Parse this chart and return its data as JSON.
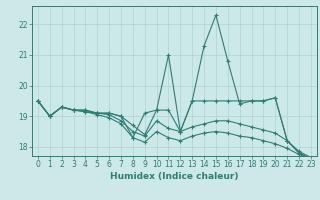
{
  "xlabel": "Humidex (Indice chaleur)",
  "xlim": [
    -0.5,
    23.5
  ],
  "ylim": [
    17.7,
    22.6
  ],
  "yticks": [
    18,
    19,
    20,
    21,
    22
  ],
  "xticks": [
    0,
    1,
    2,
    3,
    4,
    5,
    6,
    7,
    8,
    9,
    10,
    11,
    12,
    13,
    14,
    15,
    16,
    17,
    18,
    19,
    20,
    21,
    22,
    23
  ],
  "bg_color": "#cce9e7",
  "line_color": "#2e7d74",
  "grid_color": "#aed4d0",
  "line1_x": [
    0,
    1,
    2,
    3,
    4,
    5,
    6,
    7,
    8,
    9,
    10,
    11,
    12,
    13,
    14,
    15,
    16,
    17,
    18,
    19,
    20,
    21,
    22,
    23
  ],
  "line1_y": [
    19.5,
    19.0,
    19.3,
    19.2,
    19.2,
    19.1,
    19.1,
    19.0,
    18.3,
    19.1,
    19.2,
    21.0,
    18.5,
    19.5,
    21.3,
    22.3,
    20.8,
    19.4,
    19.5,
    19.5,
    19.6,
    18.2,
    17.8,
    17.6
  ],
  "line2_x": [
    0,
    1,
    2,
    3,
    4,
    5,
    6,
    7,
    8,
    9,
    10,
    11,
    12,
    13,
    14,
    15,
    16,
    17,
    18,
    19,
    20,
    21,
    22,
    23
  ],
  "line2_y": [
    19.5,
    19.0,
    19.3,
    19.2,
    19.2,
    19.1,
    19.1,
    19.0,
    18.7,
    18.4,
    19.2,
    19.2,
    18.5,
    19.5,
    19.5,
    19.5,
    19.5,
    19.5,
    19.5,
    19.5,
    19.6,
    18.2,
    17.8,
    17.6
  ],
  "line3_x": [
    0,
    1,
    2,
    3,
    4,
    5,
    6,
    7,
    8,
    9,
    10,
    11,
    12,
    13,
    14,
    15,
    16,
    17,
    18,
    19,
    20,
    21,
    22,
    23
  ],
  "line3_y": [
    19.5,
    19.0,
    19.3,
    19.2,
    19.15,
    19.1,
    19.05,
    18.85,
    18.5,
    18.35,
    18.85,
    18.6,
    18.5,
    18.65,
    18.75,
    18.85,
    18.85,
    18.75,
    18.65,
    18.55,
    18.45,
    18.2,
    17.85,
    17.65
  ],
  "line4_x": [
    0,
    1,
    2,
    3,
    4,
    5,
    6,
    7,
    8,
    9,
    10,
    11,
    12,
    13,
    14,
    15,
    16,
    17,
    18,
    19,
    20,
    21,
    22,
    23
  ],
  "line4_y": [
    19.5,
    19.0,
    19.3,
    19.2,
    19.15,
    19.05,
    18.95,
    18.75,
    18.3,
    18.15,
    18.5,
    18.3,
    18.2,
    18.35,
    18.45,
    18.5,
    18.45,
    18.35,
    18.3,
    18.2,
    18.1,
    17.95,
    17.75,
    17.6
  ]
}
